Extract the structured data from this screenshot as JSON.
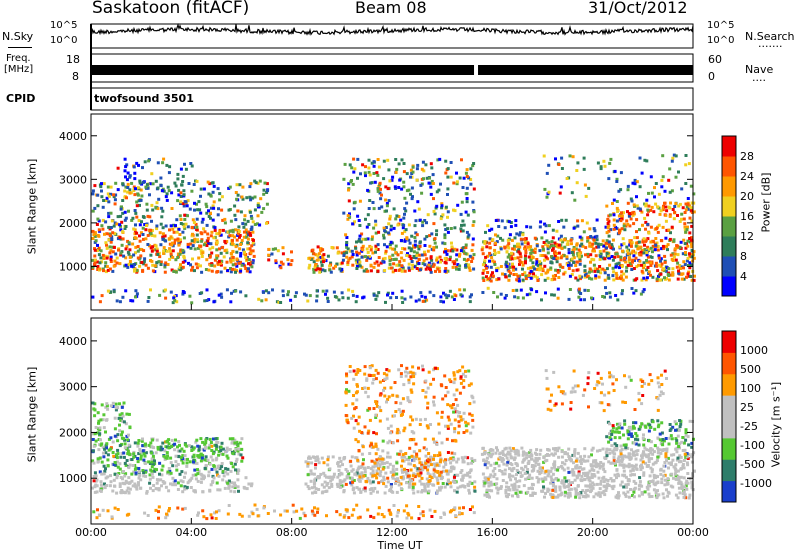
{
  "header": {
    "station": "Saskatoon (fitACF)",
    "beam": "Beam 08",
    "date": "31/Oct/2012"
  },
  "strips": {
    "nsky": {
      "left_label": "N.Sky",
      "left_ticks": [
        "10^5",
        "10^0"
      ],
      "right_label": "N.Search",
      "right_ticks": [
        "10^5",
        "10^0"
      ],
      "dots": "......."
    },
    "freq": {
      "left_label_line1": "Freq.",
      "left_label_line2": "[MHz]",
      "left_ticks": [
        "18",
        "8"
      ],
      "right_label": "Nave",
      "right_ticks": [
        "60",
        "0"
      ],
      "dots": "...."
    },
    "cpid": {
      "label": "CPID",
      "program": "twofsound 3501"
    }
  },
  "chart_data": [
    {
      "type": "heatmap",
      "panel": "power",
      "ylabel": "Slant Range [km]",
      "yticks": [
        "4000",
        "3000",
        "2000",
        "1000"
      ],
      "colorbar_label": "Power [dB]",
      "colorbar_ticks": [
        "28",
        "24",
        "20",
        "16",
        "12",
        "8",
        "4"
      ],
      "colors": [
        "#0000ff",
        "#1f4fb5",
        "#2e7d5a",
        "#5aa042",
        "#f0d020",
        "#ff9900",
        "#ff5500",
        "#ee0000"
      ]
    },
    {
      "type": "heatmap",
      "panel": "velocity",
      "ylabel": "Slant Range [km]",
      "yticks": [
        "4000",
        "3000",
        "2000",
        "1000"
      ],
      "colorbar_label": "Velocity [m s⁻¹]",
      "colorbar_ticks": [
        "1000",
        "500",
        "100",
        "25",
        "-25",
        "-100",
        "-500",
        "-1000"
      ],
      "colors": [
        "#1a3fcc",
        "#2e7d6a",
        "#55c832",
        "#c0c0c0",
        "#c0c0c0",
        "#ff9a00",
        "#ff5500",
        "#ee0000"
      ]
    }
  ],
  "xaxis": {
    "ticks": [
      "00:00",
      "04:00",
      "08:00",
      "12:00",
      "16:00",
      "20:00",
      "00:00"
    ],
    "label": "Time UT"
  }
}
